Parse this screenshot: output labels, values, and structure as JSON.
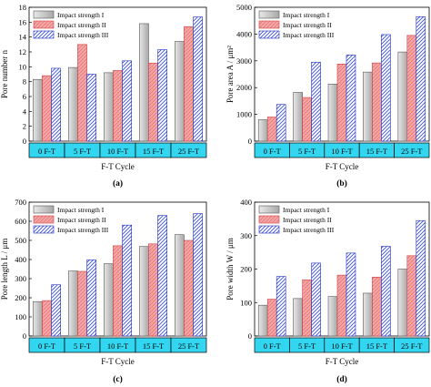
{
  "legend_labels": [
    "Impact strength I",
    "Impact strength  II",
    "Impact strength  III"
  ],
  "series_colors": [
    "#c8c8c8",
    "#f4a6a6",
    "#9aa6f0"
  ],
  "category_bar_color": "#33d6f0",
  "chart_data": [
    {
      "type": "bar",
      "panel_label": "(a)",
      "ylabel": "Pore number  n",
      "xlabel": "F-T Cycle",
      "categories": [
        "0 F-T",
        "5 F-T",
        "10 F-T",
        "15 F-T",
        "25 F-T"
      ],
      "ylim": [
        0,
        18
      ],
      "yticks": [
        0,
        2,
        4,
        6,
        8,
        10,
        12,
        14,
        16,
        18
      ],
      "series": [
        {
          "name": "Impact strength I",
          "values": [
            8.3,
            9.9,
            9.2,
            15.8,
            13.4
          ]
        },
        {
          "name": "Impact strength  II",
          "values": [
            8.8,
            13.0,
            9.5,
            10.5,
            15.4
          ]
        },
        {
          "name": "Impact strength  III",
          "values": [
            9.8,
            9.0,
            10.8,
            12.3,
            16.7
          ]
        }
      ],
      "legend": "top-left"
    },
    {
      "type": "bar",
      "panel_label": "(b)",
      "ylabel": "Pore area  A / μm²",
      "xlabel": "F-T Cycle",
      "categories": [
        "0 F-T",
        "5 F-T",
        "10 F-T",
        "15 F-T",
        "25 F-T"
      ],
      "ylim": [
        0,
        5000
      ],
      "yticks": [
        0,
        1000,
        2000,
        3000,
        4000,
        5000
      ],
      "series": [
        {
          "name": "Impact strength I",
          "values": [
            800,
            1820,
            2130,
            2580,
            3330
          ]
        },
        {
          "name": "Impact strength  II",
          "values": [
            900,
            1630,
            2880,
            2920,
            3950
          ]
        },
        {
          "name": "Impact strength  III",
          "values": [
            1370,
            2950,
            3220,
            3980,
            4650
          ]
        }
      ],
      "legend": "top-left"
    },
    {
      "type": "bar",
      "panel_label": "(c)",
      "ylabel": "Pore length  L / μm",
      "xlabel": "F-T Cycle",
      "categories": [
        "0 F-T",
        "5 F-T",
        "10 F-T",
        "15 F-T",
        "25 F-T"
      ],
      "ylim": [
        0,
        700
      ],
      "yticks": [
        0,
        100,
        200,
        300,
        400,
        500,
        600,
        700
      ],
      "series": [
        {
          "name": "Impact strength I",
          "values": [
            180,
            340,
            378,
            468,
            530
          ]
        },
        {
          "name": "Impact strength  II",
          "values": [
            185,
            338,
            472,
            482,
            500
          ]
        },
        {
          "name": "Impact strength  III",
          "values": [
            268,
            398,
            580,
            630,
            640
          ]
        }
      ],
      "legend": "top-left"
    },
    {
      "type": "bar",
      "panel_label": "(d)",
      "ylabel": "Pore width  W / μm",
      "xlabel": "F-T Cycle",
      "categories": [
        "0 F-T",
        "5 F-T",
        "10 F-T",
        "15 F-T",
        "25 F-T"
      ],
      "ylim": [
        0,
        400
      ],
      "yticks": [
        0,
        100,
        200,
        300,
        400
      ],
      "series": [
        {
          "name": "Impact strength I",
          "values": [
            92,
            112,
            118,
            128,
            200
          ]
        },
        {
          "name": "Impact strength  II",
          "values": [
            110,
            168,
            182,
            176,
            240
          ]
        },
        {
          "name": "Impact strength  III",
          "values": [
            178,
            218,
            248,
            268,
            345
          ]
        }
      ],
      "legend": "top-left"
    }
  ]
}
